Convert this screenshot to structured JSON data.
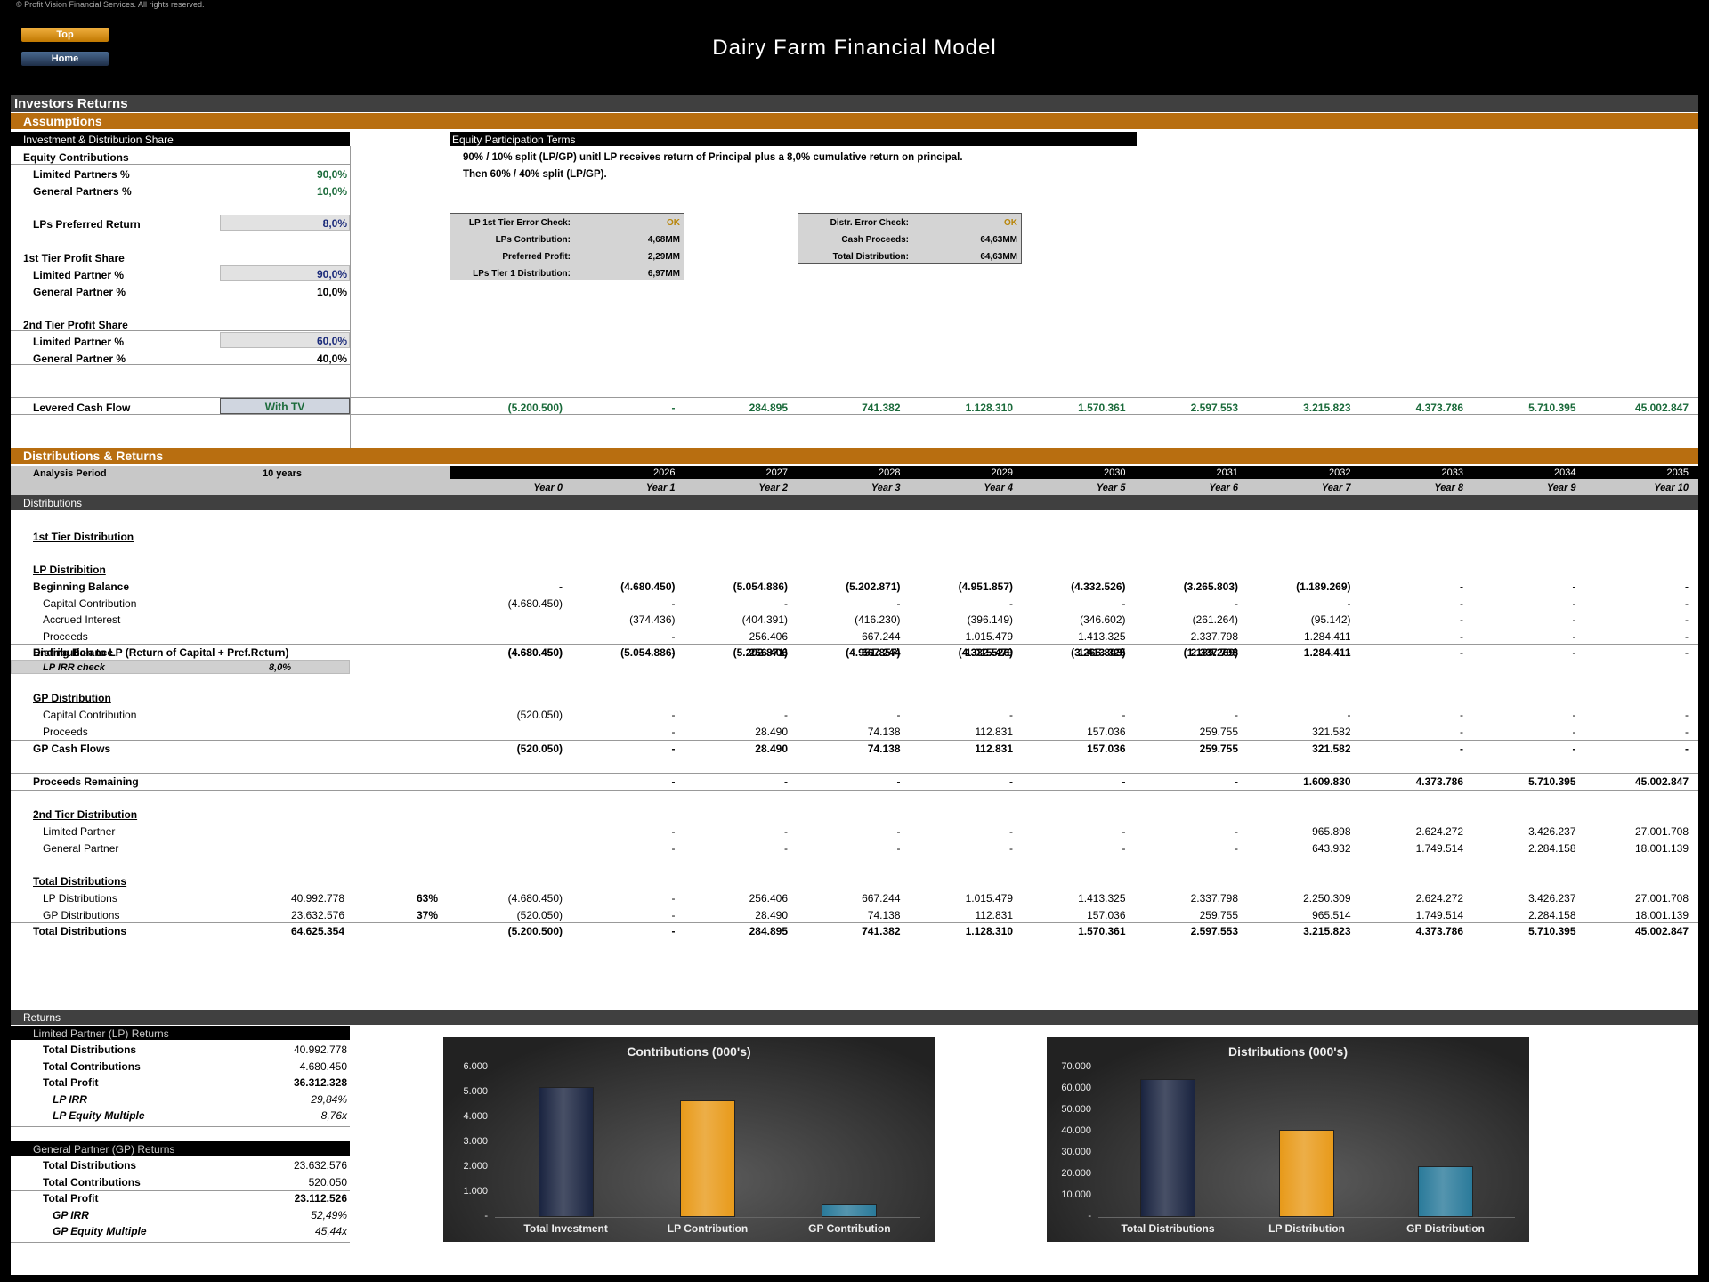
{
  "copyright": "© Profit Vision Financial Services. All rights reserved.",
  "nav": {
    "top": "Top",
    "home": "Home"
  },
  "title": "Dairy Farm Financial Model",
  "section": "Investors Returns",
  "assumptions": {
    "header": "Assumptions",
    "inv_header": "Investment & Distribution Share",
    "equity_contributions": "Equity Contributions",
    "lp_pct_label": "Limited Partners %",
    "lp_pct": "90,0%",
    "gp_pct_label": "General Partners %",
    "gp_pct": "10,0%",
    "pref_label": "LPs Preferred Return",
    "pref": "8,0%",
    "tier1_label": "1st Tier Profit Share",
    "t1_lp_label": "Limited Partner %",
    "t1_lp": "90,0%",
    "t1_gp_label": "General Partner %",
    "t1_gp": "10,0%",
    "tier2_label": "2nd Tier Profit Share",
    "t2_lp_label": "Limited Partner %",
    "t2_lp": "60,0%",
    "t2_gp_label": "General Partner %",
    "t2_gp": "40,0%",
    "terms_header": "Equity Participation Terms",
    "term1": "90% / 10% split (LP/GP) unitl LP receives return of Principal plus a 8,0% cumulative return on principal.",
    "term2": "Then 60% / 40% split (LP/GP).",
    "lpcheck": {
      "l1": "LP 1st Tier Error Check:",
      "v1": "OK",
      "l2": "LPs Contribution:",
      "v2": "4,68MM",
      "l3": "Preferred Profit:",
      "v3": "2,29MM",
      "l4": "LPs Tier 1 Distribution:",
      "v4": "6,97MM"
    },
    "distcheck": {
      "l1": "Distr. Error Check:",
      "v1": "OK",
      "l2": "Cash Proceeds:",
      "v2": "64,63MM",
      "l3": "Total Distribution:",
      "v3": "64,63MM"
    }
  },
  "levered": {
    "label": "Levered Cash Flow",
    "option": "With TV",
    "values": [
      "(5.200.500)",
      "-",
      "284.895",
      "741.382",
      "1.128.310",
      "1.570.361",
      "2.597.553",
      "3.215.823",
      "4.373.786",
      "5.710.395",
      "45.002.847"
    ]
  },
  "dist": {
    "header": "Distributions & Returns",
    "period_label": "Analysis Period",
    "period": "10 years",
    "years": [
      "",
      "2026",
      "2027",
      "2028",
      "2029",
      "2030",
      "2031",
      "2032",
      "2033",
      "2034",
      "2035"
    ],
    "yearnums": [
      "Year 0",
      "Year 1",
      "Year 2",
      "Year 3",
      "Year 4",
      "Year 5",
      "Year 6",
      "Year 7",
      "Year 8",
      "Year 9",
      "Year 10"
    ],
    "sub": "Distributions",
    "tier1": "1st Tier Distribution",
    "lpdist": "LP Distribition",
    "rows": [
      {
        "label": "Beginning Balance",
        "bold": true,
        "ind": 1,
        "v": [
          "-",
          "(4.680.450)",
          "(5.054.886)",
          "(5.202.871)",
          "(4.951.857)",
          "(4.332.526)",
          "(3.265.803)",
          "(1.189.269)",
          "-",
          "-",
          "-"
        ]
      },
      {
        "label": "Capital Contribution",
        "ind": 2,
        "v": [
          "(4.680.450)",
          "-",
          "-",
          "-",
          "-",
          "-",
          "-",
          "-",
          "-",
          "-",
          "-"
        ]
      },
      {
        "label": "Accrued Interest",
        "ind": 2,
        "v": [
          "",
          "(374.436)",
          "(404.391)",
          "(416.230)",
          "(396.149)",
          "(346.602)",
          "(261.264)",
          "(95.142)",
          "-",
          "-",
          "-"
        ]
      },
      {
        "label": "Proceeds",
        "ind": 2,
        "v": [
          "",
          "-",
          "256.406",
          "667.244",
          "1.015.479",
          "1.413.325",
          "2.337.798",
          "1.284.411",
          "-",
          "-",
          "-"
        ]
      },
      {
        "label": "Ending Balance",
        "bold": true,
        "ind": 1,
        "v": [
          "(4.680.450)",
          "(5.054.886)",
          "(5.202.871)",
          "(4.951.857)",
          "(4.332.526)",
          "(3.265.803)",
          "(1.189.269)",
          "-",
          "-",
          "-",
          "-"
        ]
      }
    ],
    "distlp": {
      "label": "Distribution to LP (Return of Capital + Pref.Return)",
      "v": [
        "(4.680.450)",
        "-",
        "256.406",
        "667.244",
        "1.015.479",
        "1.413.325",
        "2.337.798",
        "1.284.411",
        "-",
        "-",
        "-"
      ]
    },
    "irrcheck": {
      "label": "LP IRR check",
      "val": "8,0%"
    },
    "gpdist": "GP Distribution",
    "gprows": [
      {
        "label": "Capital Contribution",
        "v": [
          "(520.050)",
          "-",
          "-",
          "-",
          "-",
          "-",
          "-",
          "-",
          "-",
          "-",
          "-"
        ]
      },
      {
        "label": "Proceeds",
        "v": [
          "",
          "-",
          "28.490",
          "74.138",
          "112.831",
          "157.036",
          "259.755",
          "321.582",
          "-",
          "-",
          "-"
        ]
      }
    ],
    "gpcf": {
      "label": "GP Cash Flows",
      "v": [
        "(520.050)",
        "-",
        "28.490",
        "74.138",
        "112.831",
        "157.036",
        "259.755",
        "321.582",
        "-",
        "-",
        "-"
      ]
    },
    "remaining": {
      "label": "Proceeds Remaining",
      "v": [
        "",
        "-",
        "-",
        "-",
        "-",
        "-",
        "-",
        "1.609.830",
        "4.373.786",
        "5.710.395",
        "45.002.847"
      ]
    },
    "tier2": "2nd Tier Distribution",
    "t2rows": [
      {
        "label": "Limited Partner",
        "v": [
          "",
          "-",
          "-",
          "-",
          "-",
          "-",
          "-",
          "965.898",
          "2.624.272",
          "3.426.237",
          "27.001.708"
        ]
      },
      {
        "label": "General Partner",
        "v": [
          "",
          "-",
          "-",
          "-",
          "-",
          "-",
          "-",
          "643.932",
          "1.749.514",
          "2.284.158",
          "18.001.139"
        ]
      }
    ],
    "totals": "Total Distributions",
    "totrows": [
      {
        "label": "LP Distributions",
        "sum": "40.992.778",
        "pct": "63%",
        "v": [
          "(4.680.450)",
          "-",
          "256.406",
          "667.244",
          "1.015.479",
          "1.413.325",
          "2.337.798",
          "2.250.309",
          "2.624.272",
          "3.426.237",
          "27.001.708"
        ]
      },
      {
        "label": "GP Distributions",
        "sum": "23.632.576",
        "pct": "37%",
        "v": [
          "(520.050)",
          "-",
          "28.490",
          "74.138",
          "112.831",
          "157.036",
          "259.755",
          "965.514",
          "1.749.514",
          "2.284.158",
          "18.001.139"
        ]
      }
    ],
    "total": {
      "label": "Total Distributions",
      "sum": "64.625.354",
      "v": [
        "(5.200.500)",
        "-",
        "284.895",
        "741.382",
        "1.128.310",
        "1.570.361",
        "2.597.553",
        "3.215.823",
        "4.373.786",
        "5.710.395",
        "45.002.847"
      ]
    }
  },
  "returns": {
    "header": "Returns",
    "lp": {
      "header": "Limited Partner (LP) Returns",
      "rows": [
        [
          "Total Distributions",
          "40.992.778"
        ],
        [
          "Total Contributions",
          "4.680.450"
        ],
        [
          "Total Profit",
          "36.312.328"
        ],
        [
          "LP IRR",
          "29,84%"
        ],
        [
          "LP Equity Multiple",
          "8,76x"
        ]
      ]
    },
    "gp": {
      "header": "General Partner (GP) Returns",
      "rows": [
        [
          "Total Distributions",
          "23.632.576"
        ],
        [
          "Total Contributions",
          "520.050"
        ],
        [
          "Total Profit",
          "23.112.526"
        ],
        [
          "GP IRR",
          "52,49%"
        ],
        [
          "GP Equity Multiple",
          "45,44x"
        ]
      ]
    }
  },
  "chart_data": [
    {
      "type": "bar",
      "title": "Contributions (000's)",
      "categories": [
        "Total Investment",
        "LP Contribution",
        "GP Contribution"
      ],
      "values": [
        5201,
        4680,
        520
      ],
      "ylim": [
        0,
        6000
      ],
      "ticks": [
        "-",
        "1.000",
        "2.000",
        "3.000",
        "4.000",
        "5.000",
        "6.000"
      ],
      "colors": [
        "#1a2440",
        "#e89a1a",
        "#2a7a9a"
      ]
    },
    {
      "type": "bar",
      "title": "Distributions (000's)",
      "categories": [
        "Total Distributions",
        "LP Distribution",
        "GP Distribution"
      ],
      "values": [
        64625,
        40993,
        23633
      ],
      "ylim": [
        0,
        70000
      ],
      "ticks": [
        "-",
        "10.000",
        "20.000",
        "30.000",
        "40.000",
        "50.000",
        "60.000",
        "70.000"
      ],
      "colors": [
        "#1a2440",
        "#e89a1a",
        "#2a7a9a"
      ]
    }
  ]
}
